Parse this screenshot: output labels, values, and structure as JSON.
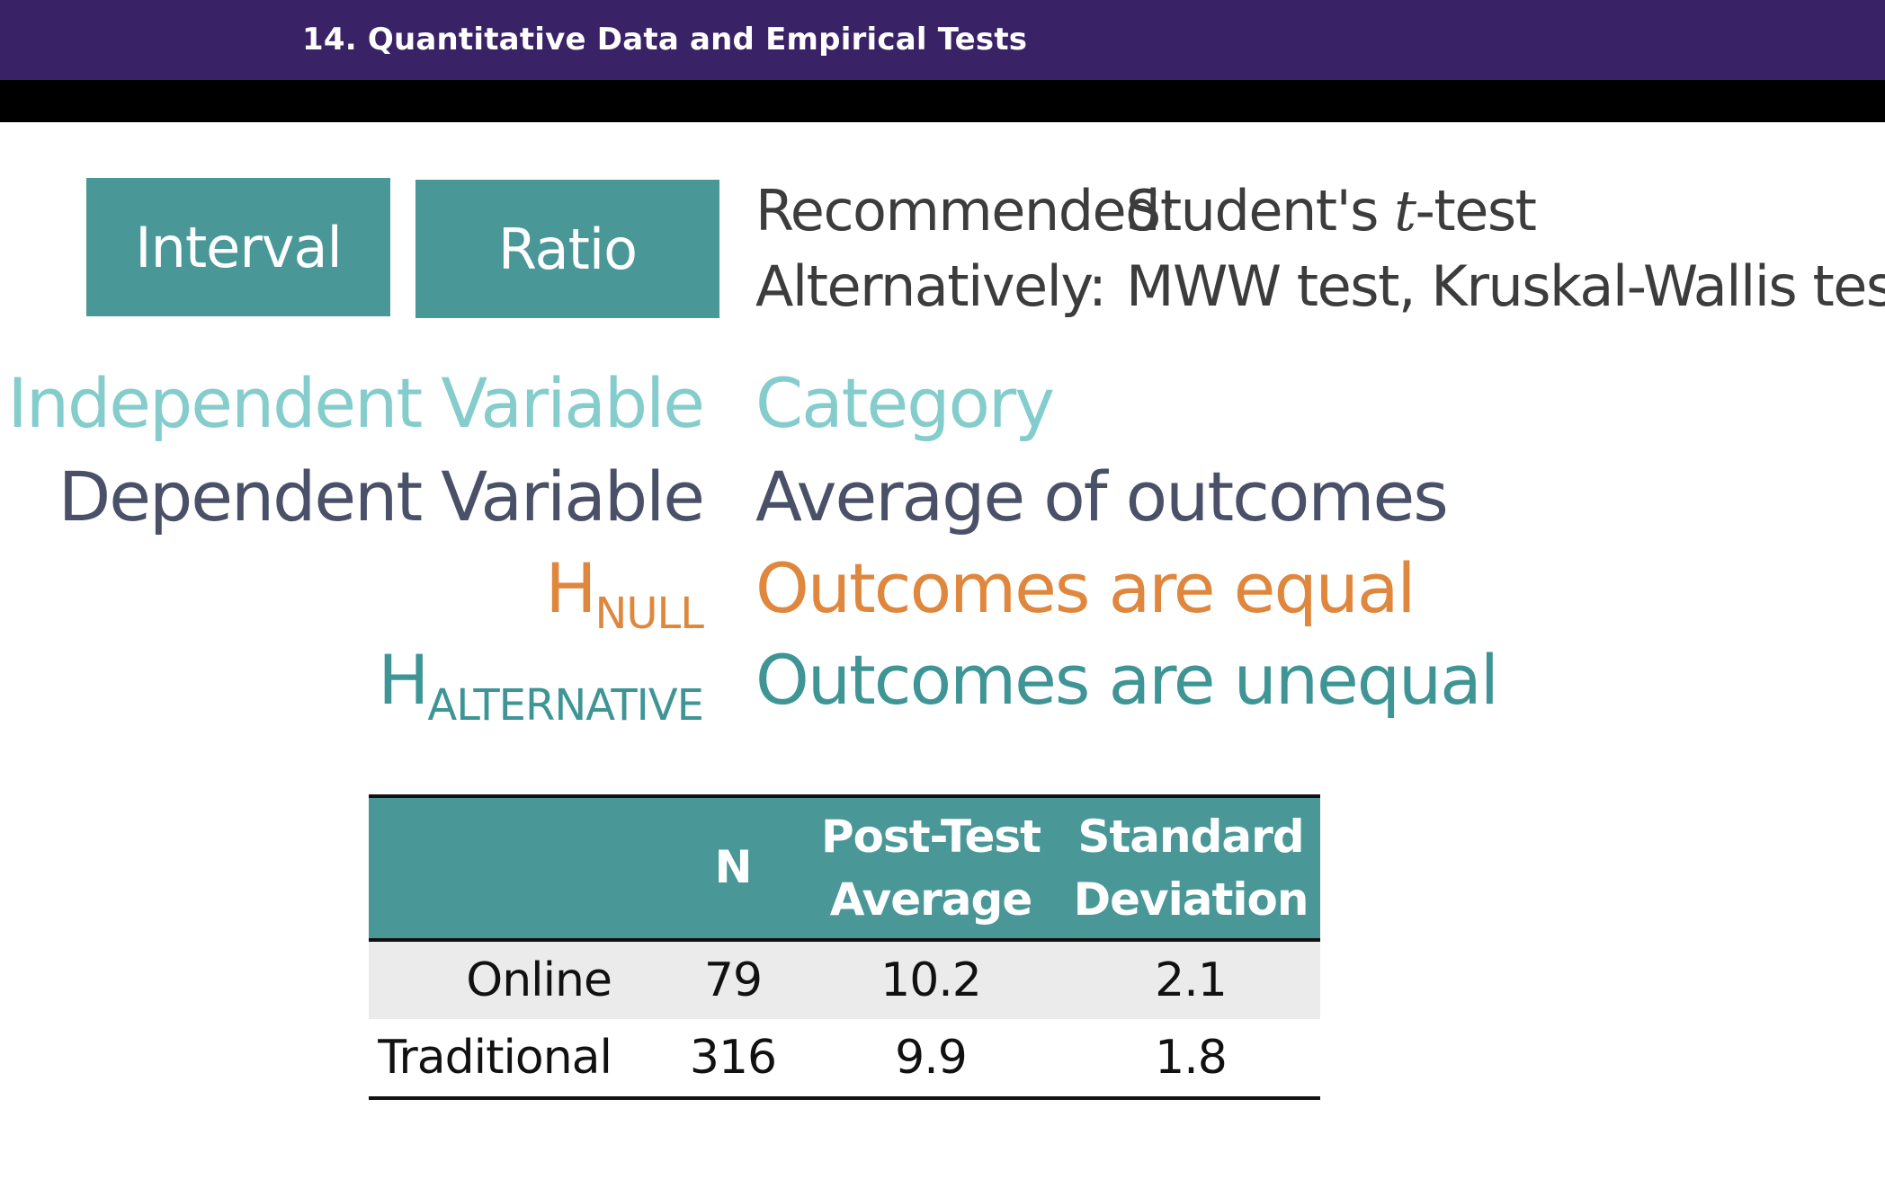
{
  "header": {
    "title": "14. Quantitative Data and Empirical Tests"
  },
  "tags": {
    "interval": "Interval",
    "ratio": "Ratio"
  },
  "recommendation": {
    "recommended_label": "Recommended:",
    "recommended_prefix": "Student's ",
    "recommended_t": "t",
    "recommended_suffix": "-test",
    "alternatively_label": "Alternatively:",
    "alternatively_value": "MWW test, Kruskal-Wallis test"
  },
  "variables": {
    "independent_label": "Independent Variable",
    "independent_value": "Category",
    "dependent_label": "Dependent Variable",
    "dependent_value": "Average of outcomes",
    "h_null_main": "H",
    "h_null_sub": "NULL",
    "h_null_value": "Outcomes are equal",
    "h_alt_main": "H",
    "h_alt_sub": "ALTERNATIVE",
    "h_alt_value": "Outcomes are unequal"
  },
  "table": {
    "headers": {
      "n": "N",
      "avg_line1": "Post-Test",
      "avg_line2": "Average",
      "sd_line1": "Standard",
      "sd_line2": "Deviation"
    },
    "rows": [
      {
        "label": "Online",
        "n": "79",
        "avg": "10.2",
        "sd": "2.1"
      },
      {
        "label": "Traditional",
        "n": "316",
        "avg": "9.9",
        "sd": "1.8"
      }
    ]
  },
  "colors": {
    "header_bg": "#3a2266",
    "teal": "#4a9797",
    "light_teal": "#85cccc",
    "dark_slate": "#4a5068",
    "orange": "#e0873e"
  }
}
